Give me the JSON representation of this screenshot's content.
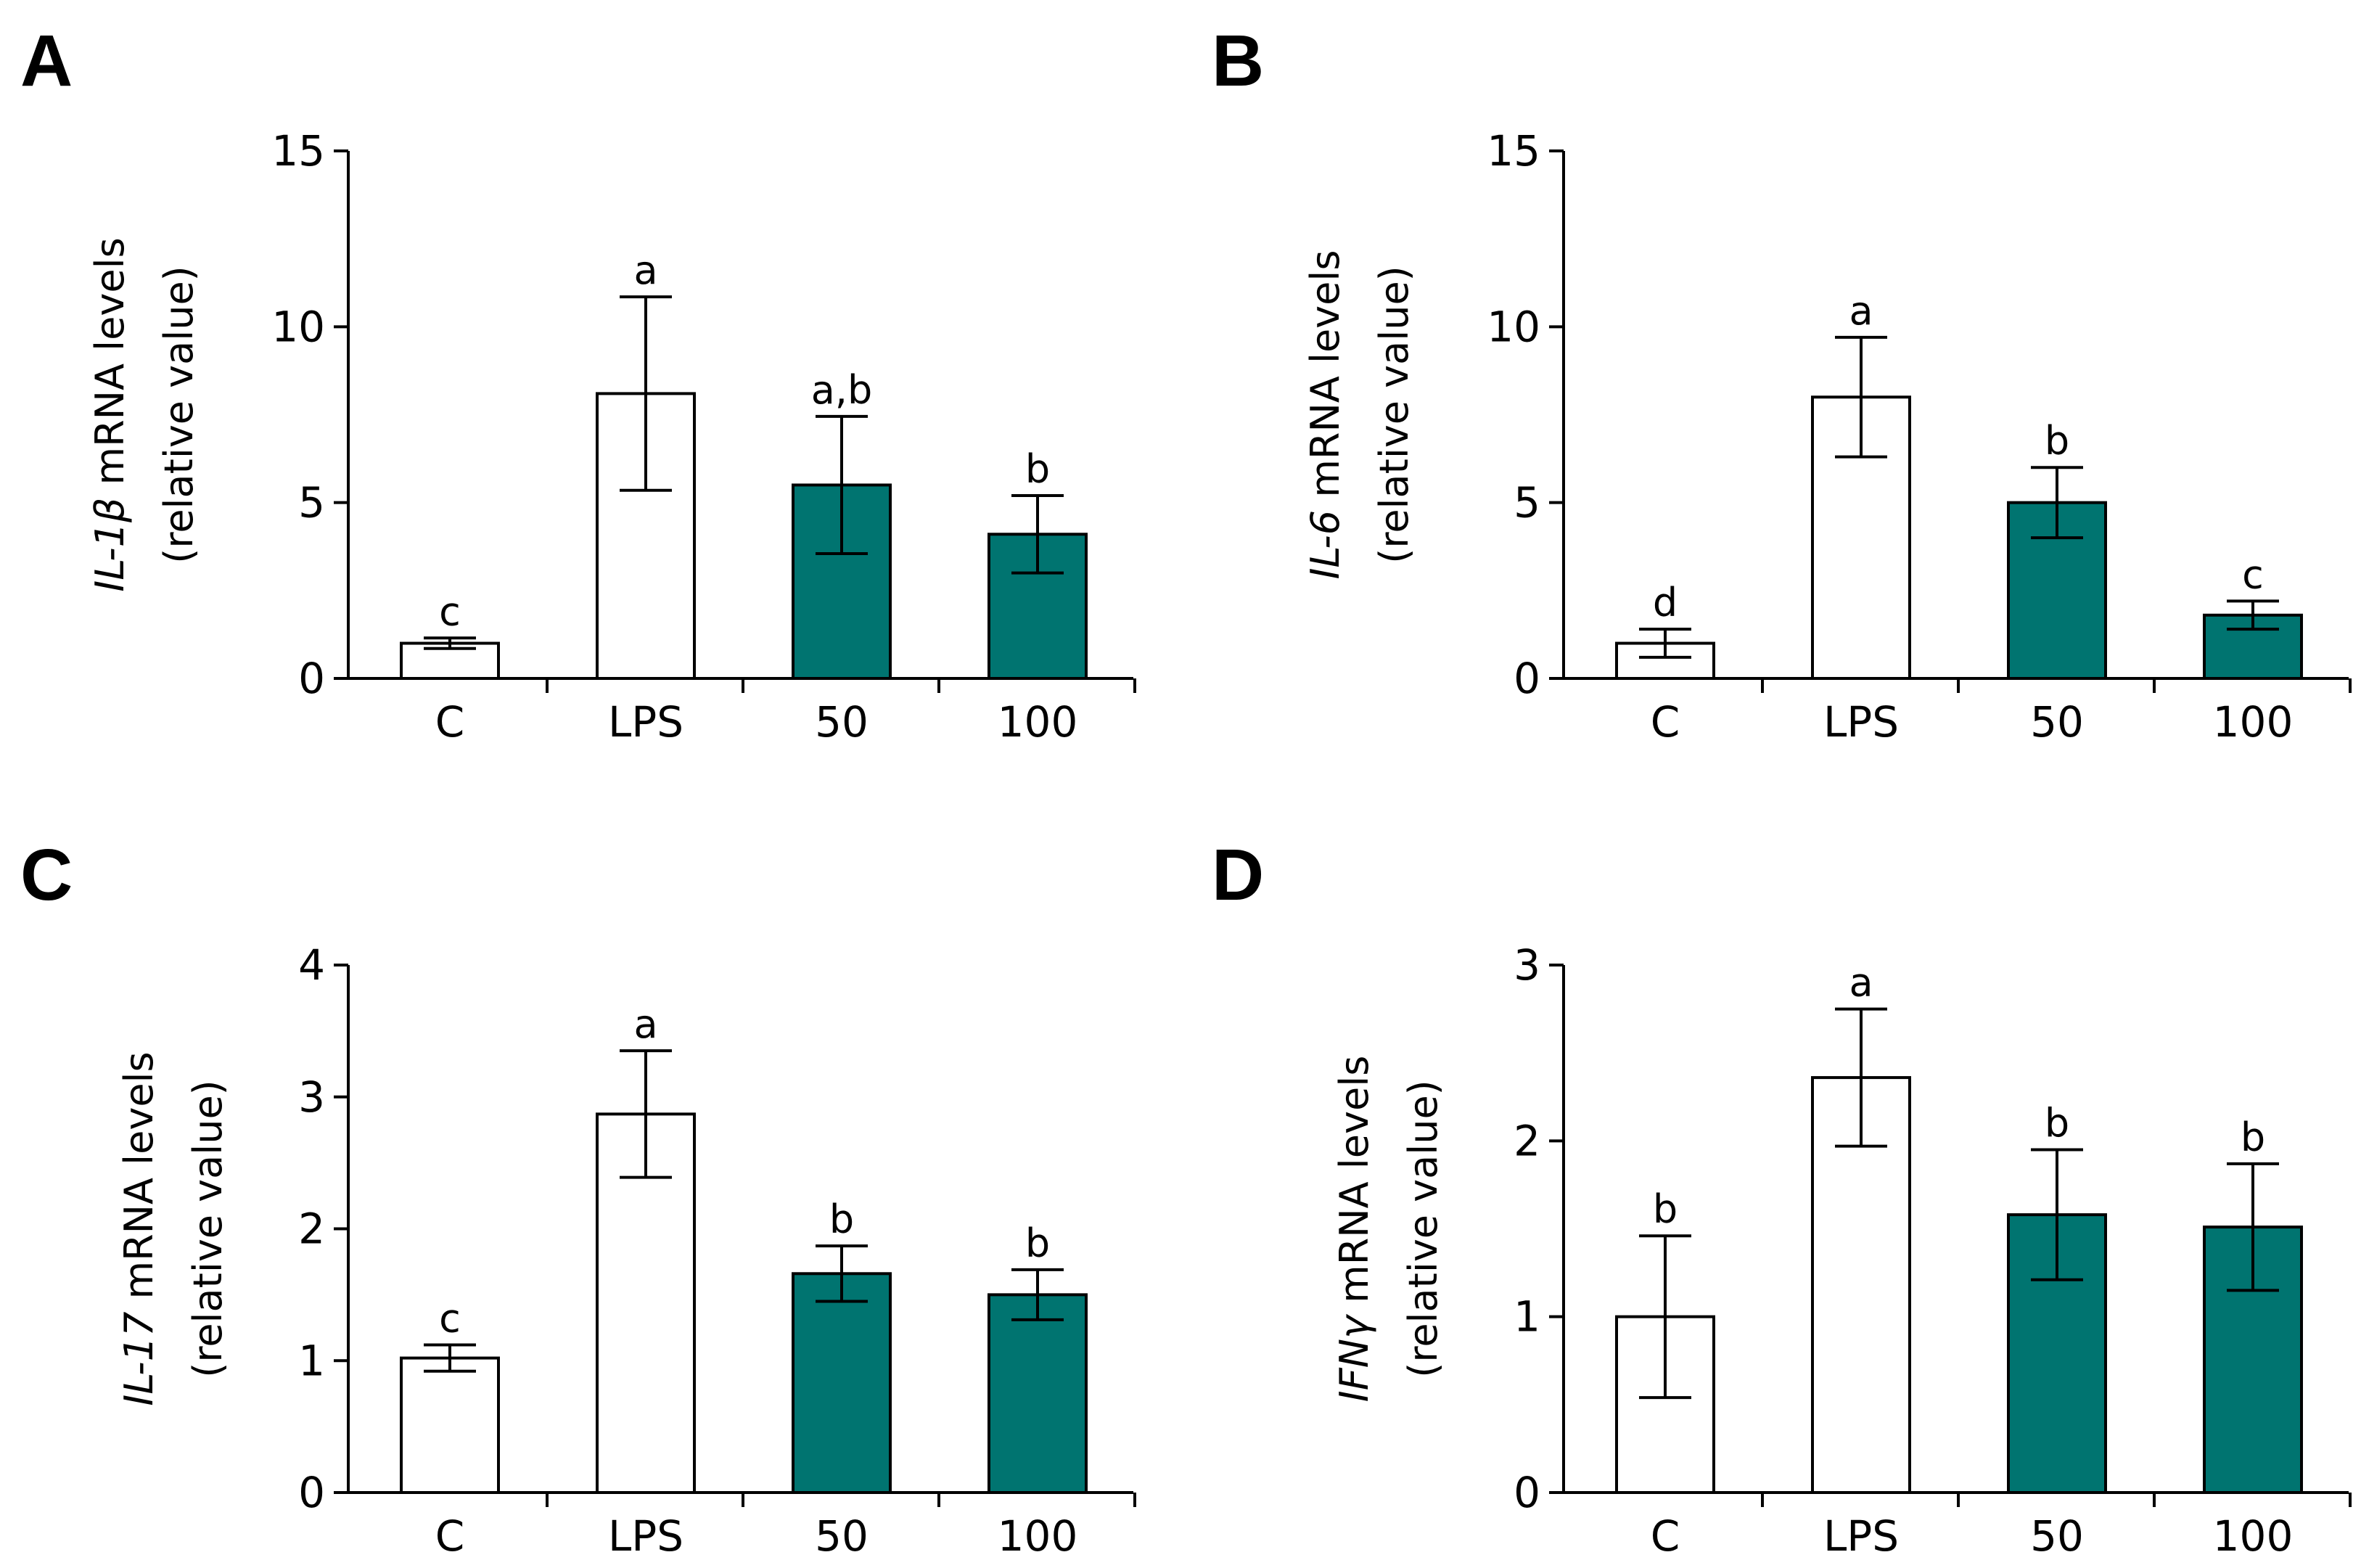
{
  "colors": {
    "control_fill": "#ffffff",
    "treated_fill": "#007470",
    "stroke": "#000000"
  },
  "chart_data": [
    {
      "type": "bar",
      "panel": "A",
      "gene": "IL-1β",
      "ylabel_rest": " mRNA levels",
      "ylabel_line2": "(relative value)",
      "categories": [
        "C",
        "LPS",
        "50",
        "100"
      ],
      "values": [
        1.0,
        8.1,
        5.5,
        4.1
      ],
      "errors": [
        0.15,
        2.75,
        1.95,
        1.1
      ],
      "significance": [
        "c",
        "a",
        "a,b",
        "b"
      ],
      "ylim": [
        0,
        15
      ],
      "yticks": [
        0,
        5,
        10,
        15
      ],
      "ytick_labels": [
        "0",
        "5",
        "10",
        "15"
      ],
      "grid": false
    },
    {
      "type": "bar",
      "panel": "B",
      "gene": "IL-6",
      "ylabel_rest": " mRNA levels",
      "ylabel_line2": "(relative value)",
      "categories": [
        "C",
        "LPS",
        "50",
        "100"
      ],
      "values": [
        1.0,
        8.0,
        5.0,
        1.8
      ],
      "errors": [
        0.4,
        1.7,
        1.0,
        0.4
      ],
      "significance": [
        "d",
        "a",
        "b",
        "c"
      ],
      "ylim": [
        0,
        15
      ],
      "yticks": [
        0,
        5,
        10,
        15
      ],
      "ytick_labels": [
        "0",
        "5",
        "10",
        "15"
      ],
      "grid": false
    },
    {
      "type": "bar",
      "panel": "C",
      "gene": "IL-17",
      "ylabel_rest": " mRNA levels",
      "ylabel_line2": "(relative value)",
      "categories": [
        "C",
        "LPS",
        "50",
        "100"
      ],
      "values": [
        1.02,
        2.87,
        1.66,
        1.5
      ],
      "errors": [
        0.1,
        0.48,
        0.21,
        0.19
      ],
      "significance": [
        "c",
        "a",
        "b",
        "b"
      ],
      "ylim": [
        0,
        4
      ],
      "yticks": [
        0,
        1,
        2,
        3,
        4
      ],
      "ytick_labels": [
        "0",
        "1",
        "2",
        "3",
        "4"
      ],
      "grid": false
    },
    {
      "type": "bar",
      "panel": "D",
      "gene": "IFNγ",
      "ylabel_rest": " mRNA levels",
      "ylabel_line2": "(relative value)",
      "categories": [
        "C",
        "LPS",
        "50",
        "100"
      ],
      "values": [
        1.0,
        2.36,
        1.58,
        1.51
      ],
      "errors": [
        0.46,
        0.39,
        0.37,
        0.36
      ],
      "significance": [
        "b",
        "a",
        "b",
        "b"
      ],
      "ylim": [
        0,
        3
      ],
      "yticks": [
        0,
        1,
        2,
        3
      ],
      "ytick_labels": [
        "0",
        "1",
        "2",
        "3"
      ],
      "grid": false
    }
  ]
}
